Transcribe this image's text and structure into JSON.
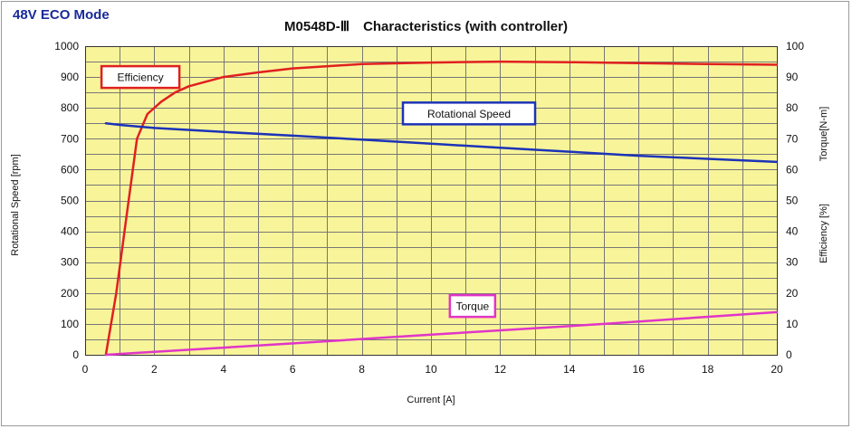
{
  "mode_label": "48V ECO Mode",
  "chart_data": {
    "type": "line",
    "title": "M0548D-Ⅲ　Characteristics (with controller)",
    "xlabel": "Current [A]",
    "ylabel_left": "Rotational Speed [rpm]",
    "ylabel_right_top": "Torque[N-m]",
    "ylabel_right_bottom": "Efficiency [%]",
    "xlim": [
      0,
      20
    ],
    "ylim_left": [
      0,
      1000
    ],
    "ylim_right": [
      0,
      100
    ],
    "x_ticks": [
      0,
      2,
      4,
      6,
      8,
      10,
      12,
      14,
      16,
      18,
      20
    ],
    "y_left_ticks": [
      0,
      100,
      200,
      300,
      400,
      500,
      600,
      700,
      800,
      900,
      1000
    ],
    "y_right_ticks": [
      0,
      10,
      20,
      30,
      40,
      50,
      60,
      70,
      80,
      90,
      100
    ],
    "grid": true,
    "plot_background": "#f8f49a",
    "series": [
      {
        "name": "Efficiency",
        "axis": "right",
        "color": "#e02020",
        "points": [
          [
            0.6,
            0
          ],
          [
            0.9,
            20
          ],
          [
            1.2,
            45
          ],
          [
            1.5,
            70
          ],
          [
            1.8,
            78
          ],
          [
            2.2,
            82
          ],
          [
            2.6,
            85
          ],
          [
            3,
            87
          ],
          [
            4,
            90
          ],
          [
            5,
            91.5
          ],
          [
            6,
            92.8
          ],
          [
            8,
            94.2
          ],
          [
            10,
            94.7
          ],
          [
            12,
            95
          ],
          [
            14,
            94.8
          ],
          [
            16,
            94.5
          ],
          [
            18,
            94.2
          ],
          [
            20,
            94
          ]
        ]
      },
      {
        "name": "Rotational Speed",
        "axis": "left",
        "color": "#1c33b8",
        "points": [
          [
            0.6,
            750
          ],
          [
            1,
            745
          ],
          [
            2,
            735
          ],
          [
            4,
            722
          ],
          [
            6,
            710
          ],
          [
            8,
            697
          ],
          [
            10,
            684
          ],
          [
            12,
            671
          ],
          [
            14,
            658
          ],
          [
            16,
            645
          ],
          [
            18,
            635
          ],
          [
            20,
            625
          ]
        ]
      },
      {
        "name": "Torque",
        "axis": "right",
        "color": "#e035c8",
        "points": [
          [
            0.6,
            0
          ],
          [
            5,
            3
          ],
          [
            10,
            6.5
          ],
          [
            15,
            10
          ],
          [
            20,
            13.8
          ]
        ]
      }
    ]
  }
}
